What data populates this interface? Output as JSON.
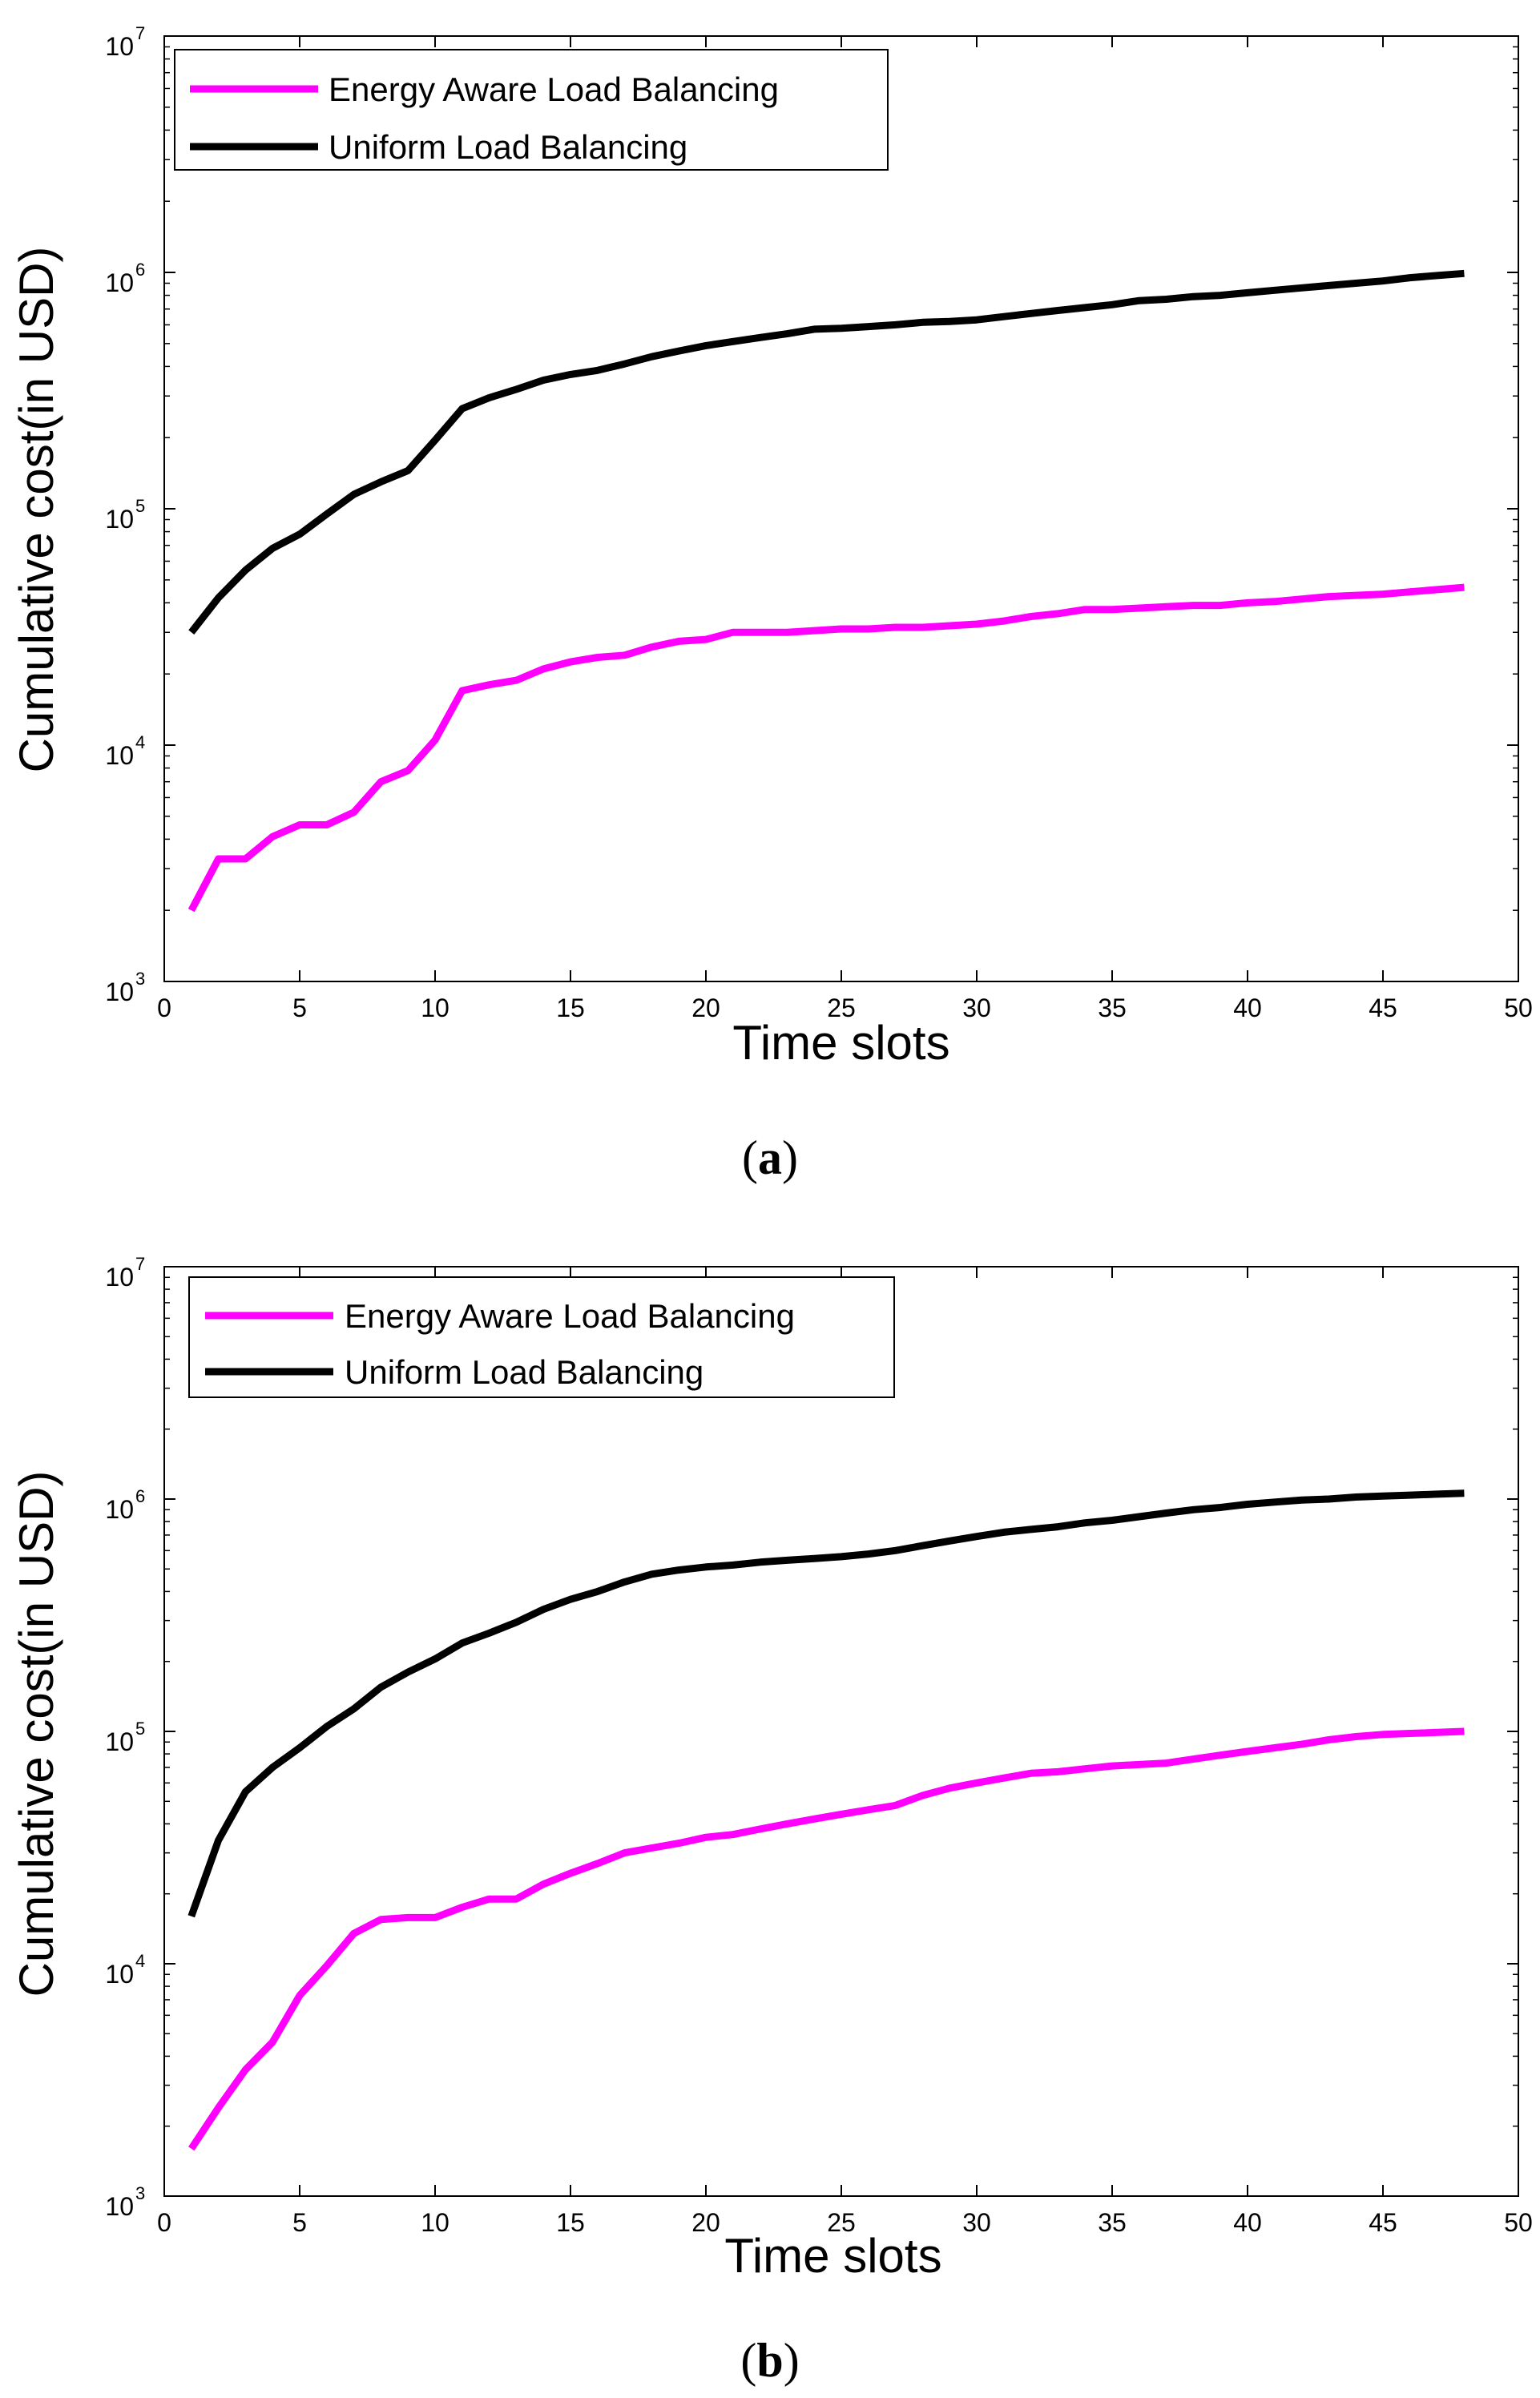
{
  "chart_data": [
    {
      "type": "line",
      "panel_label": "a",
      "xlabel": "Time slots",
      "ylabel": "Cumulative cost(in USD)",
      "xlim": [
        0,
        50
      ],
      "ylim": [
        1000,
        10000000
      ],
      "yscale": "log",
      "xticks": [
        0,
        5,
        10,
        15,
        20,
        25,
        30,
        35,
        40,
        45,
        50
      ],
      "yticks": [
        {
          "base": "10",
          "exp": "3"
        },
        {
          "base": "10",
          "exp": "4"
        },
        {
          "base": "10",
          "exp": "5"
        },
        {
          "base": "10",
          "exp": "6"
        },
        {
          "base": "10",
          "exp": "7"
        }
      ],
      "legend_position": "top-left",
      "series": [
        {
          "name": "Energy Aware Load Balancing",
          "color": "#ff00ff",
          "x": [
            1,
            2,
            3,
            4,
            5,
            6,
            7,
            8,
            9,
            10,
            11,
            12,
            13,
            14,
            15,
            16,
            17,
            18,
            19,
            20,
            21,
            22,
            23,
            24,
            25,
            26,
            27,
            28,
            29,
            30,
            31,
            32,
            33,
            34,
            35,
            36,
            37,
            38,
            39,
            40,
            41,
            42,
            43,
            44,
            45,
            46,
            47,
            48
          ],
          "values": [
            2000,
            3300,
            3300,
            4100,
            4600,
            4600,
            5200,
            7000,
            7800,
            10500,
            17000,
            18000,
            18800,
            21000,
            22500,
            23500,
            24000,
            26000,
            27500,
            28000,
            30000,
            30000,
            30000,
            30500,
            31000,
            31000,
            31500,
            31500,
            32000,
            32500,
            33500,
            35000,
            36000,
            37500,
            37500,
            38000,
            38500,
            39000,
            39000,
            40000,
            40500,
            41500,
            42500,
            43000,
            43500,
            44500,
            45500,
            46500
          ]
        },
        {
          "name": "Uniform Load Balancing",
          "color": "#000000",
          "x": [
            1,
            2,
            3,
            4,
            5,
            6,
            7,
            8,
            9,
            10,
            11,
            12,
            13,
            14,
            15,
            16,
            17,
            18,
            19,
            20,
            21,
            22,
            23,
            24,
            25,
            26,
            27,
            28,
            29,
            30,
            31,
            32,
            33,
            34,
            35,
            36,
            37,
            38,
            39,
            40,
            41,
            42,
            43,
            44,
            45,
            46,
            47,
            48
          ],
          "values": [
            30000,
            42000,
            55000,
            68000,
            78000,
            95000,
            115000,
            130000,
            145000,
            195000,
            265000,
            295000,
            320000,
            350000,
            370000,
            385000,
            410000,
            440000,
            465000,
            490000,
            510000,
            530000,
            550000,
            575000,
            580000,
            590000,
            600000,
            615000,
            620000,
            630000,
            650000,
            670000,
            690000,
            710000,
            730000,
            760000,
            770000,
            790000,
            800000,
            820000,
            840000,
            860000,
            880000,
            900000,
            920000,
            950000,
            970000,
            990000
          ]
        }
      ]
    },
    {
      "type": "line",
      "panel_label": "b",
      "xlabel": "Time slots",
      "ylabel": "Cumulative cost(in USD)",
      "xlim": [
        0,
        50
      ],
      "ylim": [
        1000,
        10000000
      ],
      "yscale": "log",
      "xticks": [
        0,
        5,
        10,
        15,
        20,
        25,
        30,
        35,
        40,
        45,
        50
      ],
      "yticks": [
        {
          "base": "10",
          "exp": "3"
        },
        {
          "base": "10",
          "exp": "4"
        },
        {
          "base": "10",
          "exp": "5"
        },
        {
          "base": "10",
          "exp": "6"
        },
        {
          "base": "10",
          "exp": "7"
        }
      ],
      "legend_position": "top-left",
      "series": [
        {
          "name": "Energy Aware Load Balancing",
          "color": "#ff00ff",
          "x": [
            1,
            2,
            3,
            4,
            5,
            6,
            7,
            8,
            9,
            10,
            11,
            12,
            13,
            14,
            15,
            16,
            17,
            18,
            19,
            20,
            21,
            22,
            23,
            24,
            25,
            26,
            27,
            28,
            29,
            30,
            31,
            32,
            33,
            34,
            35,
            36,
            37,
            38,
            39,
            40,
            41,
            42,
            43,
            44,
            45,
            46,
            47,
            48
          ],
          "values": [
            1600,
            2400,
            3500,
            4600,
            7300,
            9800,
            13500,
            15500,
            15800,
            15800,
            17500,
            19000,
            19000,
            22000,
            24500,
            27000,
            30000,
            31500,
            33000,
            35000,
            36000,
            38000,
            40000,
            42000,
            44000,
            46000,
            48000,
            53000,
            57000,
            60000,
            63000,
            66000,
            67000,
            69000,
            71000,
            72000,
            73000,
            76000,
            79000,
            82000,
            85000,
            88000,
            92000,
            95000,
            97000,
            98000,
            99000,
            100000
          ]
        },
        {
          "name": "Uniform Load Balancing",
          "color": "#000000",
          "x": [
            1,
            2,
            3,
            4,
            5,
            6,
            7,
            8,
            9,
            10,
            11,
            12,
            13,
            14,
            15,
            16,
            17,
            18,
            19,
            20,
            21,
            22,
            23,
            24,
            25,
            26,
            27,
            28,
            29,
            30,
            31,
            32,
            33,
            34,
            35,
            36,
            37,
            38,
            39,
            40,
            41,
            42,
            43,
            44,
            45,
            46,
            47,
            48
          ],
          "values": [
            16000,
            34000,
            55000,
            70000,
            85000,
            105000,
            125000,
            155000,
            180000,
            205000,
            240000,
            265000,
            295000,
            335000,
            370000,
            400000,
            440000,
            475000,
            495000,
            510000,
            520000,
            535000,
            545000,
            555000,
            565000,
            580000,
            600000,
            630000,
            660000,
            690000,
            720000,
            740000,
            760000,
            790000,
            810000,
            840000,
            870000,
            900000,
            920000,
            950000,
            970000,
            990000,
            1000000,
            1020000,
            1030000,
            1040000,
            1050000,
            1060000
          ]
        }
      ]
    }
  ]
}
